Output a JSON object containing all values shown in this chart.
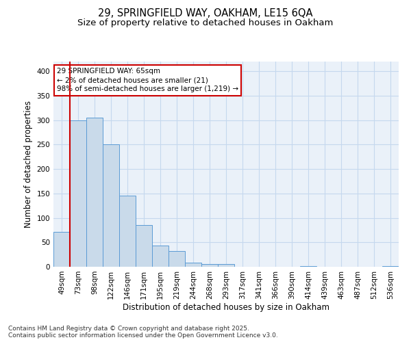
{
  "title1": "29, SPRINGFIELD WAY, OAKHAM, LE15 6QA",
  "title2": "Size of property relative to detached houses in Oakham",
  "xlabel": "Distribution of detached houses by size in Oakham",
  "ylabel": "Number of detached properties",
  "bar_labels": [
    "49sqm",
    "73sqm",
    "98sqm",
    "122sqm",
    "146sqm",
    "171sqm",
    "195sqm",
    "219sqm",
    "244sqm",
    "268sqm",
    "293sqm",
    "317sqm",
    "341sqm",
    "366sqm",
    "390sqm",
    "414sqm",
    "439sqm",
    "463sqm",
    "487sqm",
    "512sqm",
    "536sqm"
  ],
  "bar_values": [
    72,
    300,
    305,
    250,
    145,
    85,
    44,
    32,
    8,
    5,
    5,
    0,
    0,
    0,
    0,
    2,
    0,
    0,
    0,
    0,
    2
  ],
  "bar_color": "#c9daea",
  "bar_edge_color": "#5b9bd5",
  "vline_color": "#cc0000",
  "vline_x": 0.5,
  "annotation_text": "29 SPRINGFIELD WAY: 65sqm\n← 2% of detached houses are smaller (21)\n98% of semi-detached houses are larger (1,219) →",
  "annotation_box_color": "#ffffff",
  "annotation_box_edge": "#cc0000",
  "ylim": [
    0,
    420
  ],
  "yticks": [
    0,
    50,
    100,
    150,
    200,
    250,
    300,
    350,
    400
  ],
  "grid_color": "#c5d8ee",
  "background_color": "#eaf1f9",
  "footer_text": "Contains HM Land Registry data © Crown copyright and database right 2025.\nContains public sector information licensed under the Open Government Licence v3.0.",
  "title1_fontsize": 10.5,
  "title2_fontsize": 9.5,
  "xlabel_fontsize": 8.5,
  "ylabel_fontsize": 8.5,
  "tick_fontsize": 7.5,
  "annotation_fontsize": 7.5,
  "footer_fontsize": 6.5
}
